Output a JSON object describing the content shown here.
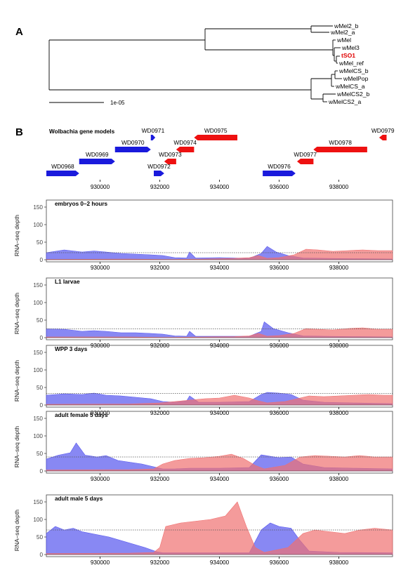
{
  "panel_a": {
    "letter": "A",
    "scale_label": "1e-05",
    "tips": [
      "wMel2_b",
      "wMel2_a",
      "wMel",
      "wMel3",
      "tSO1",
      "wMel_ref",
      "wMelCS_b",
      "wMelPop",
      "wMelCS_a",
      "wMelCS2_b",
      "wMelCS2_a"
    ],
    "highlight_tip": "tSO1",
    "highlight_color": "#e00000"
  },
  "panel_b": {
    "letter": "B",
    "title": "Wolbachia gene models",
    "strand_colors": {
      "plus": "#1a1adc",
      "minus": "#ee1111"
    },
    "genes": [
      {
        "name": "WD0968",
        "start": 928200,
        "end": 929300,
        "strand": "+",
        "row": 0
      },
      {
        "name": "WD0969",
        "start": 929300,
        "end": 930500,
        "strand": "+",
        "row": 1
      },
      {
        "name": "WD0970",
        "start": 930500,
        "end": 931700,
        "strand": "+",
        "row": 2
      },
      {
        "name": "WD0971",
        "start": 931700,
        "end": 931850,
        "strand": "+",
        "row": 3
      },
      {
        "name": "WD0972",
        "start": 931800,
        "end": 932150,
        "strand": "+",
        "row": 0
      },
      {
        "name": "WD0973",
        "start": 932150,
        "end": 932550,
        "strand": "-",
        "row": 1
      },
      {
        "name": "WD0974",
        "start": 932550,
        "end": 933150,
        "strand": "-",
        "row": 2
      },
      {
        "name": "WD0975",
        "start": 933150,
        "end": 934600,
        "strand": "-",
        "row": 3
      },
      {
        "name": "WD0976",
        "start": 935450,
        "end": 936550,
        "strand": "+",
        "row": 0
      },
      {
        "name": "WD0977",
        "start": 936600,
        "end": 937150,
        "strand": "-",
        "row": 1
      },
      {
        "name": "WD0978",
        "start": 937150,
        "end": 938950,
        "strand": "-",
        "row": 2
      },
      {
        "name": "WD0979",
        "start": 939350,
        "end": 939600,
        "strand": "-",
        "row": 3
      }
    ],
    "x_ticks": [
      930000,
      932000,
      934000,
      936000,
      938000
    ]
  },
  "chart_data": [
    {
      "type": "area",
      "title": "embryos 0–2 hours",
      "ylabel": "RNA–seq depth",
      "ylim": [
        0,
        150
      ],
      "y_ticks": [
        0,
        50,
        100,
        150
      ],
      "xlim": [
        928200,
        939800
      ],
      "dotted_level": 20,
      "x_ticks": [
        930000,
        932000,
        934000,
        936000,
        938000
      ],
      "series": [
        {
          "strand": "+",
          "color": "#5555ee",
          "values": [
            [
              928200,
              20
            ],
            [
              928800,
              28
            ],
            [
              929400,
              22
            ],
            [
              929800,
              25
            ],
            [
              930200,
              22
            ],
            [
              930700,
              18
            ],
            [
              931200,
              16
            ],
            [
              931700,
              14
            ],
            [
              932100,
              12
            ],
            [
              932500,
              6
            ],
            [
              932900,
              5
            ],
            [
              933000,
              22
            ],
            [
              933200,
              5
            ],
            [
              934000,
              6
            ],
            [
              935000,
              4
            ],
            [
              935400,
              18
            ],
            [
              935600,
              38
            ],
            [
              935900,
              22
            ],
            [
              936300,
              12
            ],
            [
              936800,
              5
            ],
            [
              937500,
              4
            ],
            [
              938500,
              3
            ],
            [
              939800,
              2
            ]
          ]
        },
        {
          "strand": "-",
          "color": "#f07070",
          "values": [
            [
              928200,
              1
            ],
            [
              931000,
              2
            ],
            [
              932000,
              1
            ],
            [
              932500,
              1
            ],
            [
              933500,
              2
            ],
            [
              934500,
              4
            ],
            [
              935000,
              6
            ],
            [
              935300,
              12
            ],
            [
              935600,
              4
            ],
            [
              936000,
              6
            ],
            [
              936500,
              14
            ],
            [
              936900,
              30
            ],
            [
              937300,
              28
            ],
            [
              937800,
              24
            ],
            [
              938300,
              26
            ],
            [
              938800,
              28
            ],
            [
              939300,
              26
            ],
            [
              939800,
              26
            ]
          ]
        }
      ]
    },
    {
      "type": "area",
      "title": "L1 larvae",
      "ylabel": "RNA–seq depth",
      "ylim": [
        0,
        150
      ],
      "y_ticks": [
        0,
        50,
        100,
        150
      ],
      "xlim": [
        928200,
        939800
      ],
      "dotted_level": 25,
      "x_ticks": [
        930000,
        932000,
        934000,
        936000,
        938000
      ],
      "series": [
        {
          "strand": "+",
          "color": "#5555ee",
          "values": [
            [
              928200,
              25
            ],
            [
              928800,
              24
            ],
            [
              929400,
              18
            ],
            [
              929800,
              20
            ],
            [
              930200,
              18
            ],
            [
              930700,
              14
            ],
            [
              931200,
              14
            ],
            [
              931700,
              12
            ],
            [
              932100,
              10
            ],
            [
              932500,
              5
            ],
            [
              932900,
              4
            ],
            [
              933000,
              18
            ],
            [
              933200,
              4
            ],
            [
              934000,
              4
            ],
            [
              935000,
              4
            ],
            [
              935400,
              18
            ],
            [
              935500,
              45
            ],
            [
              935800,
              26
            ],
            [
              936300,
              14
            ],
            [
              936800,
              5
            ],
            [
              937500,
              4
            ],
            [
              938500,
              3
            ],
            [
              939800,
              2
            ]
          ]
        },
        {
          "strand": "-",
          "color": "#f07070",
          "values": [
            [
              928200,
              2
            ],
            [
              931000,
              2
            ],
            [
              932000,
              1
            ],
            [
              932500,
              1
            ],
            [
              933500,
              2
            ],
            [
              934500,
              3
            ],
            [
              935000,
              5
            ],
            [
              935300,
              12
            ],
            [
              935600,
              4
            ],
            [
              936000,
              6
            ],
            [
              936500,
              12
            ],
            [
              936900,
              26
            ],
            [
              937300,
              24
            ],
            [
              937800,
              22
            ],
            [
              938300,
              26
            ],
            [
              938800,
              28
            ],
            [
              939300,
              24
            ],
            [
              939800,
              24
            ]
          ]
        }
      ]
    },
    {
      "type": "area",
      "title": "WPP 3 days",
      "ylabel": "RNA–seq depth",
      "ylim": [
        0,
        150
      ],
      "y_ticks": [
        0,
        50,
        100,
        150
      ],
      "xlim": [
        928200,
        939800
      ],
      "dotted_level": 33,
      "x_ticks": [
        930000,
        932000,
        934000,
        936000,
        938000
      ],
      "series": [
        {
          "strand": "+",
          "color": "#5555ee",
          "values": [
            [
              928200,
              28
            ],
            [
              928800,
              32
            ],
            [
              929400,
              30
            ],
            [
              929800,
              34
            ],
            [
              930200,
              28
            ],
            [
              930700,
              26
            ],
            [
              931200,
              22
            ],
            [
              931700,
              18
            ],
            [
              932100,
              10
            ],
            [
              932500,
              8
            ],
            [
              932900,
              12
            ],
            [
              933000,
              26
            ],
            [
              933300,
              8
            ],
            [
              934000,
              8
            ],
            [
              935000,
              10
            ],
            [
              935400,
              30
            ],
            [
              935600,
              36
            ],
            [
              936000,
              34
            ],
            [
              936400,
              30
            ],
            [
              936800,
              14
            ],
            [
              937500,
              8
            ],
            [
              938500,
              6
            ],
            [
              939800,
              4
            ]
          ]
        },
        {
          "strand": "-",
          "color": "#f07070",
          "values": [
            [
              928200,
              2
            ],
            [
              931000,
              3
            ],
            [
              932000,
              6
            ],
            [
              932500,
              10
            ],
            [
              933000,
              14
            ],
            [
              933500,
              18
            ],
            [
              934000,
              20
            ],
            [
              934500,
              28
            ],
            [
              935000,
              20
            ],
            [
              935300,
              12
            ],
            [
              935600,
              6
            ],
            [
              936200,
              10
            ],
            [
              936600,
              18
            ],
            [
              937000,
              26
            ],
            [
              937500,
              24
            ],
            [
              938000,
              26
            ],
            [
              938500,
              28
            ],
            [
              939000,
              30
            ],
            [
              939500,
              28
            ],
            [
              939800,
              28
            ]
          ]
        }
      ]
    },
    {
      "type": "area",
      "title": "adult female 5 days",
      "ylabel": "RNA–seq depth",
      "ylim": [
        0,
        150
      ],
      "y_ticks": [
        0,
        50,
        100,
        150
      ],
      "xlim": [
        928200,
        939800
      ],
      "dotted_level": 40,
      "x_ticks": [
        930000,
        932000,
        934000,
        936000,
        938000
      ],
      "series": [
        {
          "strand": "+",
          "color": "#5555ee",
          "values": [
            [
              928200,
              34
            ],
            [
              928600,
              45
            ],
            [
              929000,
              52
            ],
            [
              929200,
              80
            ],
            [
              929500,
              45
            ],
            [
              929900,
              40
            ],
            [
              930200,
              44
            ],
            [
              930600,
              30
            ],
            [
              931000,
              25
            ],
            [
              931400,
              20
            ],
            [
              931800,
              12
            ],
            [
              932100,
              6
            ],
            [
              932500,
              6
            ],
            [
              933000,
              8
            ],
            [
              934000,
              8
            ],
            [
              935000,
              10
            ],
            [
              935400,
              46
            ],
            [
              935700,
              42
            ],
            [
              936000,
              38
            ],
            [
              936400,
              40
            ],
            [
              936800,
              20
            ],
            [
              937500,
              10
            ],
            [
              938500,
              8
            ],
            [
              939800,
              6
            ]
          ]
        },
        {
          "strand": "-",
          "color": "#f07070",
          "values": [
            [
              928200,
              3
            ],
            [
              931000,
              4
            ],
            [
              931800,
              6
            ],
            [
              932100,
              20
            ],
            [
              932500,
              30
            ],
            [
              933000,
              36
            ],
            [
              933500,
              38
            ],
            [
              934000,
              42
            ],
            [
              934400,
              48
            ],
            [
              934800,
              36
            ],
            [
              935200,
              16
            ],
            [
              935500,
              6
            ],
            [
              936200,
              16
            ],
            [
              936700,
              40
            ],
            [
              937200,
              44
            ],
            [
              937700,
              42
            ],
            [
              938200,
              40
            ],
            [
              938700,
              44
            ],
            [
              939200,
              40
            ],
            [
              939800,
              40
            ]
          ]
        }
      ]
    },
    {
      "type": "area",
      "title": "adult male 5 days",
      "ylabel": "RNA–seq depth",
      "ylim": [
        0,
        150
      ],
      "y_ticks": [
        0,
        50,
        100,
        150
      ],
      "xlim": [
        928200,
        939800
      ],
      "dotted_level": 70,
      "x_ticks": [
        930000,
        932000,
        934000,
        936000,
        938000
      ],
      "series": [
        {
          "strand": "+",
          "color": "#5555ee",
          "values": [
            [
              928200,
              60
            ],
            [
              928500,
              80
            ],
            [
              928800,
              70
            ],
            [
              929100,
              75
            ],
            [
              929400,
              65
            ],
            [
              929700,
              60
            ],
            [
              930000,
              55
            ],
            [
              930300,
              50
            ],
            [
              930700,
              40
            ],
            [
              931100,
              30
            ],
            [
              931500,
              20
            ],
            [
              931900,
              8
            ],
            [
              932100,
              5
            ],
            [
              932500,
              5
            ],
            [
              934000,
              5
            ],
            [
              935000,
              5
            ],
            [
              935400,
              70
            ],
            [
              935700,
              90
            ],
            [
              936000,
              80
            ],
            [
              936400,
              75
            ],
            [
              936700,
              40
            ],
            [
              937000,
              10
            ],
            [
              938000,
              6
            ],
            [
              939800,
              5
            ]
          ]
        },
        {
          "strand": "-",
          "color": "#f07070",
          "values": [
            [
              928200,
              3
            ],
            [
              931000,
              4
            ],
            [
              931800,
              6
            ],
            [
              932000,
              20
            ],
            [
              932200,
              80
            ],
            [
              932700,
              90
            ],
            [
              933200,
              95
            ],
            [
              933700,
              100
            ],
            [
              934200,
              110
            ],
            [
              934600,
              150
            ],
            [
              934900,
              80
            ],
            [
              935200,
              20
            ],
            [
              935500,
              6
            ],
            [
              936300,
              20
            ],
            [
              936800,
              60
            ],
            [
              937200,
              70
            ],
            [
              937700,
              65
            ],
            [
              938200,
              60
            ],
            [
              938700,
              70
            ],
            [
              939200,
              75
            ],
            [
              939800,
              70
            ]
          ]
        }
      ]
    }
  ]
}
